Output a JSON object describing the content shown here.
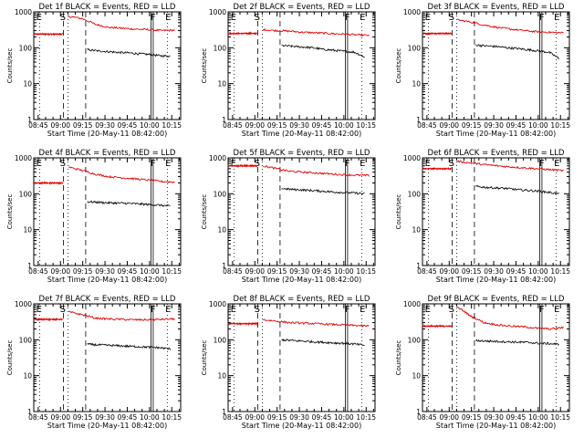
{
  "layout_cols": 3,
  "colors": {
    "events": "#000000",
    "lld": "#e00000",
    "axis": "#000000"
  },
  "shared": {
    "xlabel": "Start Time (20-May-11 08:42:00)",
    "ylabel": "Counts/sec",
    "x_ticks": [
      "08:45",
      "09:00",
      "09:15",
      "09:30",
      "09:45",
      "10:00",
      "10:15"
    ],
    "y_ticks": [
      "1",
      "10",
      "100",
      "1000"
    ],
    "x_range_minutes_after_start": [
      0,
      99
    ],
    "y_range": [
      1,
      1000
    ],
    "y_scale": "log",
    "markers": {
      "E": "E",
      "S": "S",
      "F": "F"
    }
  },
  "chart_data": [
    {
      "type": "line",
      "title": "Det 1f BLACK = Events, RED = LLD",
      "red": {
        "pre": 240,
        "post": [
          750,
          650,
          450,
          370,
          350,
          330,
          320,
          300,
          310
        ]
      },
      "black": {
        "post": [
          88,
          82,
          78,
          74,
          72,
          68,
          65,
          60,
          58
        ]
      },
      "lines": {
        "E1": 4,
        "S": 20,
        "Edash": 23,
        "D": 35,
        "F": 79,
        "E2": 90
      }
    },
    {
      "type": "line",
      "title": "Det 2f BLACK = Events, RED = LLD",
      "red": {
        "pre": 250,
        "post": [
          320,
          300,
          290,
          270,
          260,
          250,
          240,
          230,
          220
        ]
      },
      "black": {
        "post": [
          115,
          110,
          105,
          100,
          90,
          85,
          80,
          75,
          55
        ]
      },
      "lines": {
        "E1": 4,
        "S": 20,
        "Edash": 23,
        "D": 35,
        "F": 79,
        "E2": 90
      }
    },
    {
      "type": "line",
      "title": "Det 3f BLACK = Events, RED = LLD",
      "red": {
        "pre": 250,
        "post": [
          600,
          520,
          430,
          370,
          330,
          300,
          280,
          270,
          260
        ]
      },
      "black": {
        "post": [
          120,
          112,
          108,
          100,
          95,
          88,
          82,
          75,
          50
        ]
      },
      "lines": {
        "E1": 4,
        "S": 20,
        "Edash": 23,
        "D": 35,
        "F": 79,
        "E2": 90
      }
    },
    {
      "type": "line",
      "title": "Det 4f BLACK = Events, RED = LLD",
      "red": {
        "pre": 200,
        "post": [
          550,
          450,
          350,
          300,
          280,
          260,
          240,
          220,
          210
        ]
      },
      "black": {
        "post": [
          60,
          58,
          56,
          55,
          54,
          52,
          50,
          48,
          45
        ]
      },
      "lines": {
        "E1": 4,
        "S": 20,
        "Edash": 23,
        "D": 35,
        "F": 79,
        "E2": 90
      }
    },
    {
      "type": "line",
      "title": "Det 5f BLACK = Events, RED = LLD",
      "red": {
        "pre": 600,
        "post": [
          600,
          500,
          420,
          400,
          380,
          360,
          340,
          330,
          320
        ]
      },
      "black": {
        "post": [
          140,
          132,
          128,
          122,
          118,
          112,
          108,
          105,
          100
        ]
      },
      "lines": {
        "E1": 4,
        "S": 20,
        "Edash": 23,
        "D": 35,
        "F": 79,
        "E2": 90
      }
    },
    {
      "type": "line",
      "title": "Det 6f BLACK = Events, RED = LLD",
      "red": {
        "pre": 500,
        "post": [
          800,
          720,
          650,
          600,
          560,
          530,
          500,
          470,
          440
        ]
      },
      "black": {
        "post": [
          160,
          150,
          145,
          140,
          130,
          125,
          118,
          110,
          100
        ]
      },
      "lines": {
        "E1": 4,
        "S": 20,
        "Edash": 23,
        "D": 35,
        "F": 79,
        "E2": 90
      }
    },
    {
      "type": "line",
      "title": "Det 7f BLACK = Events, RED = LLD",
      "red": {
        "pre": 370,
        "post": [
          600,
          500,
          400,
          380,
          370,
          360,
          360,
          370,
          380
        ]
      },
      "black": {
        "post": [
          75,
          72,
          70,
          68,
          66,
          64,
          62,
          60,
          55
        ]
      },
      "lines": {
        "E1": 4,
        "S": 20,
        "Edash": 23,
        "D": 35,
        "F": 79,
        "E2": 90
      }
    },
    {
      "type": "line",
      "title": "Det 8f BLACK = Events, RED = LLD",
      "red": {
        "pre": 280,
        "post": [
          360,
          330,
          300,
          290,
          280,
          270,
          260,
          250,
          240
        ]
      },
      "black": {
        "post": [
          100,
          95,
          92,
          88,
          85,
          82,
          80,
          76,
          70
        ]
      },
      "lines": {
        "E1": 4,
        "S": 20,
        "Edash": 23,
        "D": 35,
        "F": 79,
        "E2": 90
      }
    },
    {
      "type": "line",
      "title": "Det 9f BLACK = Events, RED = LLD",
      "red": {
        "pre": 240,
        "post": [
          800,
          450,
          300,
          260,
          240,
          230,
          210,
          200,
          220
        ]
      },
      "black": {
        "post": [
          95,
          92,
          90,
          88,
          86,
          84,
          80,
          78,
          75
        ]
      },
      "lines": {
        "E1": 4,
        "S": 20,
        "Edash": 23,
        "D": 35,
        "F": 79,
        "E2": 90
      }
    }
  ]
}
